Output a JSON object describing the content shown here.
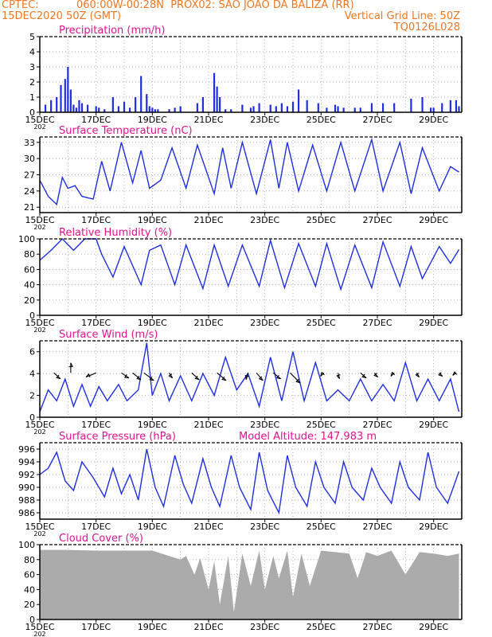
{
  "header": {
    "source": "CPTEC:",
    "location": "060:00W-00:28N  PROX02: SAO JOAO DA BALIZA (RR)",
    "init_time": "15DEC2020 50Z (GMT)",
    "grid_note": "Vertical Grid Line: 50Z",
    "model_code": "TQ0126L028",
    "altitude_label": "Model Altitude: 147.983 m"
  },
  "colors": {
    "header_text": "#ee7722",
    "panel_title": "#e0138c",
    "line": "#1f2fe0",
    "bars": "#1f2fe0",
    "cloud_fill": "#ababab",
    "grid": "#999999"
  },
  "x_ticks": [
    "15DEC",
    "17DEC",
    "19DEC",
    "21DEC",
    "23DEC",
    "25DEC",
    "27DEC",
    "29DEC"
  ],
  "x_start_label": "202",
  "chart_data": [
    {
      "type": "bar",
      "title": "Precipitation (mm/h)",
      "ylim": [
        0,
        5
      ],
      "yticks": [
        0,
        1,
        2,
        3,
        4,
        5
      ],
      "grid": true,
      "x": [
        0.2,
        0.4,
        0.6,
        0.75,
        0.9,
        1.0,
        1.1,
        1.2,
        1.3,
        1.4,
        1.5,
        1.7,
        2.0,
        2.1,
        2.3,
        2.6,
        2.8,
        3.0,
        3.2,
        3.4,
        3.6,
        3.8,
        3.9,
        4.0,
        4.1,
        4.2,
        4.6,
        4.8,
        5.0,
        5.6,
        5.8,
        6.2,
        6.3,
        6.4,
        6.6,
        6.8,
        7.2,
        7.5,
        7.6,
        7.8,
        8.2,
        8.4,
        8.6,
        8.8,
        9.0,
        9.2,
        9.5,
        9.9,
        10.2,
        10.5,
        10.6,
        10.8,
        11.2,
        11.4,
        11.8,
        12.2,
        12.6,
        13.2,
        13.6,
        13.9,
        14.0,
        14.3,
        14.6,
        14.8,
        14.9
      ],
      "values": [
        0.5,
        0.8,
        1.0,
        1.8,
        2.2,
        3.0,
        1.5,
        0.5,
        0.3,
        0.8,
        0.6,
        0.5,
        0.4,
        0.3,
        0.2,
        1.0,
        0.4,
        0.7,
        0.3,
        1.0,
        2.4,
        1.2,
        0.4,
        0.3,
        0.2,
        0.2,
        0.2,
        0.3,
        0.4,
        0.6,
        1.0,
        2.6,
        1.7,
        1.0,
        0.2,
        0.2,
        0.5,
        0.3,
        0.4,
        0.6,
        0.5,
        0.4,
        0.6,
        0.4,
        0.7,
        1.5,
        0.8,
        0.6,
        0.3,
        0.5,
        0.4,
        0.3,
        0.3,
        0.3,
        0.6,
        0.6,
        0.6,
        0.9,
        1.0,
        0.3,
        0.3,
        0.6,
        0.8,
        0.8,
        0.4
      ]
    },
    {
      "type": "line",
      "title": "Surface Temperature (nC)",
      "ylim": [
        20,
        34
      ],
      "yticks": [
        21,
        24,
        27,
        30,
        33
      ],
      "grid": true,
      "x": [
        0,
        0.3,
        0.6,
        0.8,
        1.0,
        1.25,
        1.5,
        1.9,
        2.2,
        2.5,
        2.9,
        3.3,
        3.6,
        3.9,
        4.3,
        4.7,
        5.2,
        5.6,
        6.2,
        6.5,
        6.8,
        7.2,
        7.7,
        8.2,
        8.5,
        8.8,
        9.2,
        9.7,
        10.2,
        10.7,
        11.2,
        11.8,
        12.2,
        12.8,
        13.2,
        13.6,
        14.2,
        14.6,
        14.9
      ],
      "values": [
        26,
        23,
        21.5,
        26.5,
        24.5,
        25,
        23,
        22.5,
        29.5,
        24,
        33,
        25.5,
        31.5,
        24.5,
        26,
        32,
        24.5,
        32.5,
        23.5,
        32,
        24.5,
        33,
        23.5,
        33.5,
        24.5,
        33,
        24,
        32.5,
        24,
        33,
        24,
        33.5,
        24,
        33,
        23.5,
        32,
        24,
        28.5,
        27.5
      ]
    },
    {
      "type": "line",
      "title": "Relative Humidity (%)",
      "ylim": [
        0,
        100
      ],
      "yticks": [
        0,
        20,
        40,
        60,
        80,
        100
      ],
      "grid": true,
      "x": [
        0,
        0.4,
        0.8,
        1.2,
        1.6,
        2.0,
        2.2,
        2.6,
        3.0,
        3.3,
        3.6,
        3.9,
        4.3,
        4.8,
        5.2,
        5.8,
        6.2,
        6.7,
        7.2,
        7.8,
        8.2,
        8.7,
        9.2,
        9.8,
        10.2,
        10.7,
        11.2,
        11.8,
        12.2,
        12.8,
        13.2,
        13.6,
        14.2,
        14.6,
        14.9
      ],
      "values": [
        72,
        85,
        100,
        85,
        100,
        100,
        80,
        50,
        90,
        65,
        40,
        85,
        92,
        40,
        92,
        35,
        92,
        38,
        92,
        38,
        98,
        36,
        94,
        38,
        94,
        34,
        92,
        36,
        96,
        38,
        90,
        48,
        90,
        68,
        86
      ]
    },
    {
      "type": "line",
      "title": "Surface Wind (m/s)",
      "ylim": [
        0,
        7
      ],
      "yticks": [
        0,
        2,
        4,
        6
      ],
      "grid": true,
      "x": [
        0,
        0.3,
        0.6,
        0.9,
        1.2,
        1.5,
        1.8,
        2.1,
        2.4,
        2.8,
        3.1,
        3.5,
        3.8,
        4.0,
        4.3,
        4.6,
        5.0,
        5.4,
        5.8,
        6.2,
        6.6,
        7.0,
        7.4,
        7.8,
        8.2,
        8.6,
        9.0,
        9.4,
        9.8,
        10.2,
        10.6,
        11.0,
        11.4,
        11.8,
        12.2,
        12.6,
        13.0,
        13.4,
        13.8,
        14.2,
        14.6,
        14.9
      ],
      "values": [
        0.5,
        2.5,
        1.5,
        3.5,
        1.0,
        3.0,
        1.0,
        2.8,
        1.5,
        3.0,
        1.5,
        2.5,
        6.8,
        2.0,
        4.0,
        1.5,
        3.8,
        1.5,
        4.0,
        2.0,
        5.5,
        2.5,
        4.0,
        1.0,
        5.5,
        1.5,
        6.0,
        1.5,
        5.0,
        1.5,
        2.5,
        1.5,
        3.5,
        1.5,
        3.0,
        1.5,
        5.0,
        1.5,
        3.5,
        1.5,
        3.5,
        0.5
      ],
      "vectors": [
        {
          "x": 0.5,
          "u": 0.4,
          "v": 0.35
        },
        {
          "x": 1.1,
          "u": 0,
          "v": -0.6
        },
        {
          "x": 2.0,
          "u": -0.6,
          "v": 0.25
        },
        {
          "x": 2.9,
          "u": 0.45,
          "v": 0.3
        },
        {
          "x": 3.3,
          "u": 0.5,
          "v": 0.4
        },
        {
          "x": 3.7,
          "u": 0.6,
          "v": 0.45
        },
        {
          "x": 4.6,
          "u": 0.2,
          "v": 0.3
        },
        {
          "x": 5.4,
          "u": 0.45,
          "v": 0.4
        },
        {
          "x": 6.3,
          "u": 0.55,
          "v": 0.45
        },
        {
          "x": 7.4,
          "u": -0.1,
          "v": 0.4
        },
        {
          "x": 7.7,
          "u": 0.4,
          "v": 0.45
        },
        {
          "x": 8.3,
          "u": 0.45,
          "v": 0.35
        },
        {
          "x": 8.9,
          "u": 0.6,
          "v": 0.6
        },
        {
          "x": 10.1,
          "u": -0.2,
          "v": 0.2
        },
        {
          "x": 10.6,
          "u": 0.1,
          "v": 0.35
        },
        {
          "x": 11.4,
          "u": 0.35,
          "v": 0.3
        },
        {
          "x": 11.9,
          "u": 0.2,
          "v": 0.25
        },
        {
          "x": 12.6,
          "u": -0.2,
          "v": 0.2
        },
        {
          "x": 13.4,
          "u": 0.15,
          "v": 0.25
        },
        {
          "x": 14.2,
          "u": 0.2,
          "v": 0.2
        },
        {
          "x": 14.8,
          "u": -0.2,
          "v": 0.15
        }
      ]
    },
    {
      "type": "line",
      "title": "Surface Pressure (hPa)",
      "ylim": [
        985,
        997
      ],
      "yticks": [
        986,
        988,
        990,
        992,
        994,
        996
      ],
      "grid": true,
      "x": [
        0,
        0.3,
        0.6,
        0.9,
        1.2,
        1.5,
        1.9,
        2.3,
        2.6,
        2.9,
        3.2,
        3.5,
        3.8,
        4.1,
        4.4,
        4.8,
        5.1,
        5.4,
        5.8,
        6.1,
        6.4,
        6.8,
        7.1,
        7.5,
        7.8,
        8.1,
        8.5,
        8.8,
        9.1,
        9.5,
        9.8,
        10.1,
        10.5,
        10.8,
        11.1,
        11.5,
        11.8,
        12.1,
        12.5,
        12.8,
        13.1,
        13.5,
        13.8,
        14.1,
        14.5,
        14.9
      ],
      "values": [
        992,
        993,
        995.5,
        991,
        989.5,
        994,
        991.5,
        988.5,
        993,
        989,
        992,
        988,
        996,
        990,
        987,
        995,
        990.5,
        987.5,
        994.5,
        990,
        987,
        995,
        990,
        986.5,
        995.5,
        989.5,
        986,
        995,
        990,
        987,
        994,
        990,
        987.5,
        994,
        990,
        988,
        993,
        990,
        987.5,
        994,
        990,
        988,
        995.5,
        990,
        987.5,
        992.5
      ]
    },
    {
      "type": "area",
      "title": "Cloud Cover (%)",
      "ylim": [
        0,
        100
      ],
      "yticks": [
        0,
        20,
        40,
        60,
        80,
        100
      ],
      "grid": true,
      "x": [
        0,
        1.0,
        2.0,
        3.0,
        4.0,
        5.0,
        5.2,
        5.5,
        5.7,
        6.0,
        6.2,
        6.4,
        6.7,
        6.9,
        7.2,
        7.5,
        7.8,
        8.0,
        8.3,
        8.5,
        8.8,
        9.0,
        9.3,
        9.6,
        10.0,
        10.5,
        11.0,
        11.3,
        11.6,
        12.0,
        12.5,
        13.0,
        13.5,
        14.0,
        14.5,
        14.9
      ],
      "values": [
        93,
        93,
        92,
        92,
        92,
        80,
        85,
        60,
        82,
        40,
        78,
        20,
        85,
        10,
        88,
        45,
        92,
        40,
        85,
        55,
        92,
        30,
        88,
        45,
        92,
        90,
        88,
        55,
        90,
        85,
        92,
        60,
        90,
        88,
        85,
        88
      ]
    }
  ]
}
